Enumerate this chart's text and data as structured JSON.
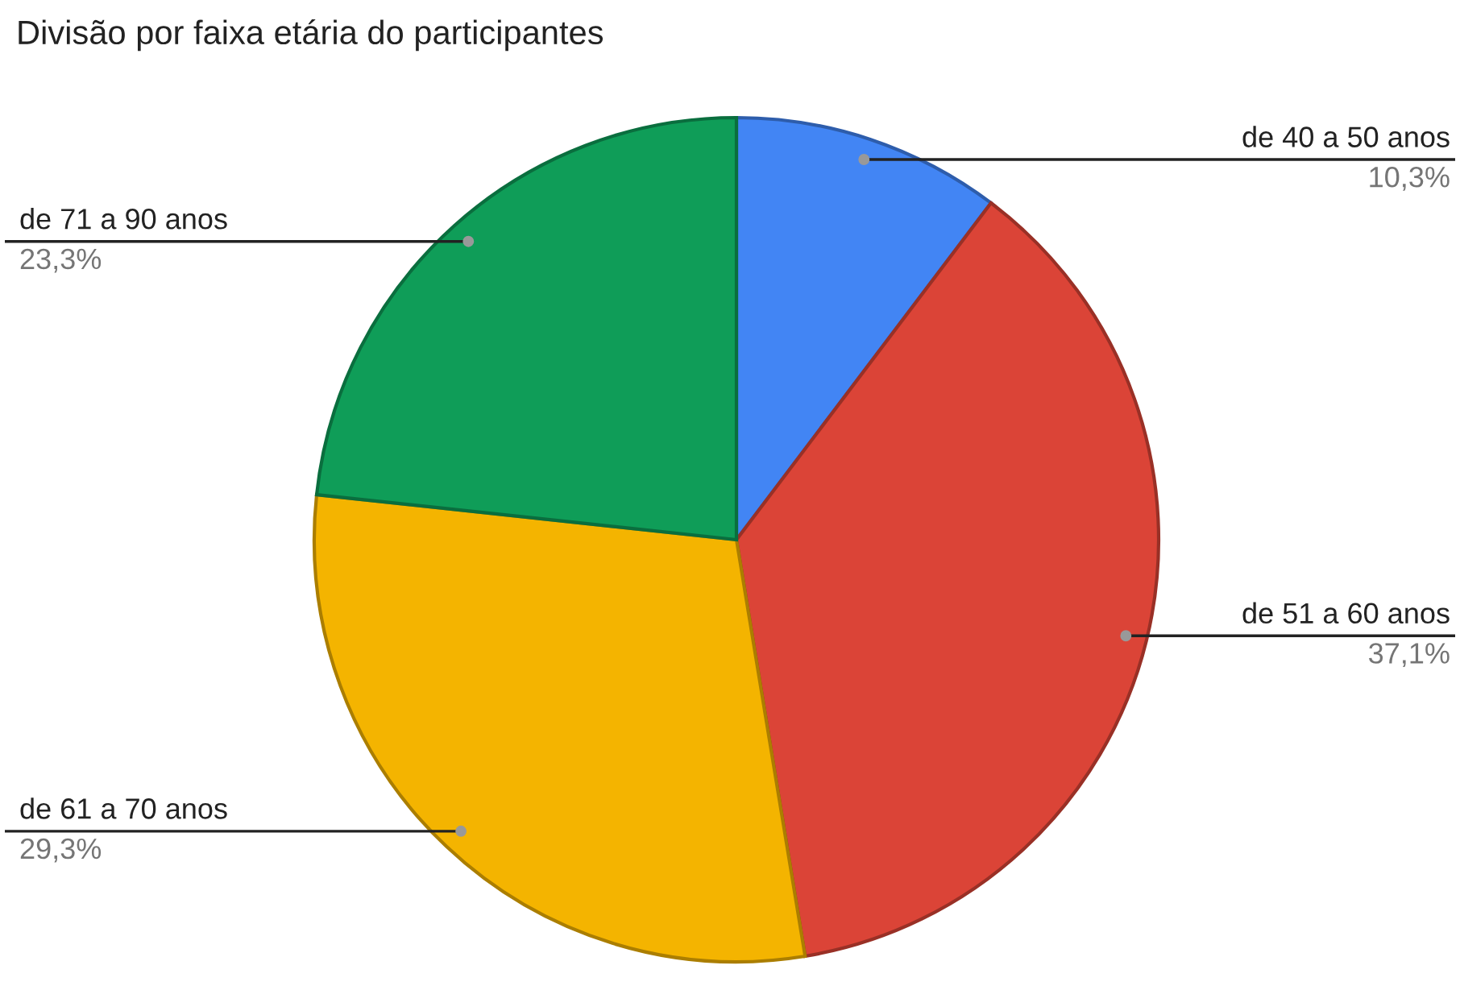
{
  "chart_data": {
    "type": "pie",
    "title": "Divisão por faixa etária do participantes",
    "categories": [
      "de 40 a 50 anos",
      "de 51 a 60 anos",
      "de 61 a 70 anos",
      "de 71 a 90 anos"
    ],
    "values": [
      10.3,
      37.1,
      29.3,
      23.3
    ],
    "value_labels": [
      "10,3%",
      "37,1%",
      "29,3%",
      "23,3%"
    ],
    "colors": [
      "#4285f4",
      "#db4437",
      "#f4b400",
      "#0f9d58"
    ],
    "legend": false
  }
}
